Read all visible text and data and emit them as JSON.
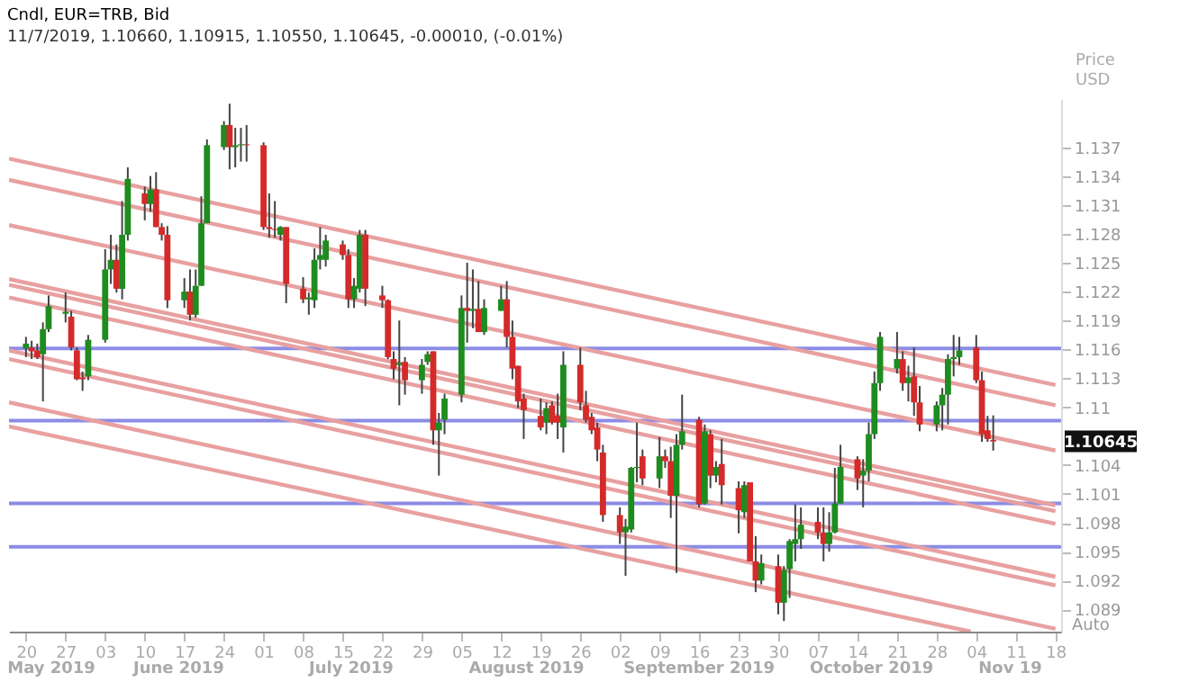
{
  "chart_data": {
    "type": "candlestick",
    "title": "Cndl, EUR=TRB, Bid",
    "subtitle": "11/7/2019, 1.10660, 1.10915, 1.10550, 1.10645, -0.00010, (-0.01%)",
    "ylabel": "Price USD",
    "x": [
      "2019-05-20",
      "2019-05-21",
      "2019-05-22",
      "2019-05-23",
      "2019-05-24",
      "2019-05-27",
      "2019-05-28",
      "2019-05-29",
      "2019-05-30",
      "2019-05-31",
      "2019-06-03",
      "2019-06-04",
      "2019-06-05",
      "2019-06-06",
      "2019-06-07",
      "2019-06-10",
      "2019-06-11",
      "2019-06-12",
      "2019-06-13",
      "2019-06-14",
      "2019-06-17",
      "2019-06-18",
      "2019-06-19",
      "2019-06-20",
      "2019-06-21",
      "2019-06-24",
      "2019-06-25",
      "2019-06-26",
      "2019-06-27",
      "2019-06-28",
      "2019-07-01",
      "2019-07-02",
      "2019-07-03",
      "2019-07-04",
      "2019-07-05",
      "2019-07-08",
      "2019-07-09",
      "2019-07-10",
      "2019-07-11",
      "2019-07-12",
      "2019-07-15",
      "2019-07-16",
      "2019-07-17",
      "2019-07-18",
      "2019-07-19",
      "2019-07-22",
      "2019-07-23",
      "2019-07-24",
      "2019-07-25",
      "2019-07-26",
      "2019-07-29",
      "2019-07-30",
      "2019-07-31",
      "2019-08-01",
      "2019-08-02",
      "2019-08-05",
      "2019-08-06",
      "2019-08-07",
      "2019-08-08",
      "2019-08-09",
      "2019-08-12",
      "2019-08-13",
      "2019-08-14",
      "2019-08-15",
      "2019-08-16",
      "2019-08-19",
      "2019-08-20",
      "2019-08-21",
      "2019-08-22",
      "2019-08-23",
      "2019-08-26",
      "2019-08-27",
      "2019-08-28",
      "2019-08-29",
      "2019-08-30",
      "2019-09-02",
      "2019-09-03",
      "2019-09-04",
      "2019-09-05",
      "2019-09-06",
      "2019-09-09",
      "2019-09-10",
      "2019-09-11",
      "2019-09-12",
      "2019-09-13",
      "2019-09-16",
      "2019-09-17",
      "2019-09-18",
      "2019-09-19",
      "2019-09-20",
      "2019-09-23",
      "2019-09-24",
      "2019-09-25",
      "2019-09-26",
      "2019-09-27",
      "2019-09-30",
      "2019-10-01",
      "2019-10-02",
      "2019-10-03",
      "2019-10-04",
      "2019-10-07",
      "2019-10-08",
      "2019-10-09",
      "2019-10-10",
      "2019-10-11",
      "2019-10-14",
      "2019-10-15",
      "2019-10-16",
      "2019-10-17",
      "2019-10-18",
      "2019-10-21",
      "2019-10-22",
      "2019-10-23",
      "2019-10-24",
      "2019-10-25",
      "2019-10-28",
      "2019-10-29",
      "2019-10-30",
      "2019-10-31",
      "2019-11-01",
      "2019-11-04",
      "2019-11-05",
      "2019-11-06",
      "2019-11-07"
    ],
    "ohlc": [
      [
        1.1161,
        1.1173,
        1.1152,
        1.1166
      ],
      [
        1.1162,
        1.1169,
        1.115,
        1.1158
      ],
      [
        1.1159,
        1.1166,
        1.115,
        1.1152
      ],
      [
        1.1155,
        1.1188,
        1.1106,
        1.1181
      ],
      [
        1.1181,
        1.1216,
        1.1178,
        1.1205
      ],
      [
        1.1197,
        1.1219,
        1.1188,
        1.1199
      ],
      [
        1.1194,
        1.12,
        1.1159,
        1.1162
      ],
      [
        1.1159,
        1.1162,
        1.1128,
        1.1129
      ],
      [
        1.1131,
        1.1137,
        1.1117,
        1.1129
      ],
      [
        1.1132,
        1.1175,
        1.1128,
        1.117
      ],
      [
        1.117,
        1.1264,
        1.1167,
        1.1243
      ],
      [
        1.1243,
        1.1279,
        1.1228,
        1.1253
      ],
      [
        1.1253,
        1.1269,
        1.1219,
        1.1223
      ],
      [
        1.1223,
        1.1314,
        1.1212,
        1.1279
      ],
      [
        1.1279,
        1.1349,
        1.1273,
        1.1337
      ],
      [
        1.1322,
        1.1329,
        1.1294,
        1.1311
      ],
      [
        1.1311,
        1.134,
        1.1303,
        1.1326
      ],
      [
        1.1326,
        1.1344,
        1.1287,
        1.1287
      ],
      [
        1.1287,
        1.1291,
        1.1273,
        1.1279
      ],
      [
        1.1279,
        1.1288,
        1.1203,
        1.1211
      ],
      [
        1.1211,
        1.1234,
        1.1203,
        1.122
      ],
      [
        1.122,
        1.1243,
        1.119,
        1.1196
      ],
      [
        1.1196,
        1.1243,
        1.1193,
        1.1226
      ],
      [
        1.1226,
        1.1319,
        1.1226,
        1.1291
      ],
      [
        1.1291,
        1.1378,
        1.1291,
        1.1372
      ],
      [
        1.137,
        1.1397,
        1.1367,
        1.1393
      ],
      [
        1.1393,
        1.1415,
        1.1347,
        1.137
      ],
      [
        1.137,
        1.139,
        1.1349,
        1.1372
      ],
      [
        1.1372,
        1.139,
        1.1355,
        1.1373
      ],
      [
        1.1373,
        1.1393,
        1.1355,
        1.1372
      ],
      [
        1.1372,
        1.1375,
        1.1284,
        1.1287
      ],
      [
        1.1287,
        1.1322,
        1.1276,
        1.1285
      ],
      [
        1.1285,
        1.1314,
        1.1276,
        1.1284
      ],
      [
        1.1279,
        1.1288,
        1.1273,
        1.1287
      ],
      [
        1.1287,
        1.1287,
        1.1208,
        1.1228
      ],
      [
        1.1223,
        1.1235,
        1.1208,
        1.1212
      ],
      [
        1.1212,
        1.1219,
        1.1196,
        1.1214
      ],
      [
        1.1211,
        1.1265,
        1.1203,
        1.1253
      ],
      [
        1.1253,
        1.1287,
        1.1243,
        1.1258
      ],
      [
        1.1253,
        1.1279,
        1.1246,
        1.1273
      ],
      [
        1.1269,
        1.1273,
        1.1253,
        1.1258
      ],
      [
        1.1258,
        1.1264,
        1.1203,
        1.1212
      ],
      [
        1.1212,
        1.1234,
        1.1203,
        1.1226
      ],
      [
        1.1223,
        1.1284,
        1.1219,
        1.1279
      ],
      [
        1.1279,
        1.1284,
        1.1205,
        1.1223
      ],
      [
        1.1216,
        1.1226,
        1.1203,
        1.1211
      ],
      [
        1.1211,
        1.1212,
        1.115,
        1.1152
      ],
      [
        1.115,
        1.1158,
        1.1129,
        1.114
      ],
      [
        1.1144,
        1.119,
        1.1102,
        1.1146
      ],
      [
        1.1147,
        1.1152,
        1.1113,
        1.1128
      ],
      [
        1.1128,
        1.115,
        1.1114,
        1.1144
      ],
      [
        1.1147,
        1.1158,
        1.1144,
        1.1155
      ],
      [
        1.1158,
        1.1158,
        1.1061,
        1.1076
      ],
      [
        1.1076,
        1.1094,
        1.1029,
        1.1084
      ],
      [
        1.1087,
        1.1114,
        1.1072,
        1.1109
      ],
      [
        1.1113,
        1.1216,
        1.1105,
        1.1203
      ],
      [
        1.1203,
        1.125,
        1.1167,
        1.12
      ],
      [
        1.12,
        1.1243,
        1.1182,
        1.1202
      ],
      [
        1.1202,
        1.1231,
        1.1178,
        1.1178
      ],
      [
        1.1178,
        1.1212,
        1.1175,
        1.1203
      ],
      [
        1.12,
        1.1226,
        1.12,
        1.1212
      ],
      [
        1.1212,
        1.1231,
        1.1162,
        1.1173
      ],
      [
        1.1173,
        1.119,
        1.1129,
        1.114
      ],
      [
        1.1143,
        1.1143,
        1.1099,
        1.1106
      ],
      [
        1.1109,
        1.1114,
        1.1067,
        1.1097
      ],
      [
        1.1091,
        1.1109,
        1.1076,
        1.1079
      ],
      [
        1.1084,
        1.1105,
        1.1072,
        1.1099
      ],
      [
        1.1102,
        1.1106,
        1.1082,
        1.1084
      ],
      [
        1.1091,
        1.1114,
        1.1067,
        1.1084
      ],
      [
        1.1079,
        1.1158,
        1.1053,
        1.1144
      ],
      [
        1.1144,
        1.1162,
        1.1097,
        1.1105
      ],
      [
        1.1102,
        1.1117,
        1.1084,
        1.1087
      ],
      [
        1.109,
        1.1094,
        1.1072,
        1.1076
      ],
      [
        1.1079,
        1.1084,
        1.1044,
        1.1056
      ],
      [
        1.1053,
        1.1061,
        1.0981,
        1.0988
      ],
      [
        1.0988,
        1.0996,
        1.0958,
        1.097
      ],
      [
        1.097,
        1.0984,
        1.0925,
        1.0976
      ],
      [
        1.0973,
        1.1038,
        1.097,
        1.1037
      ],
      [
        1.1037,
        1.1084,
        1.1022,
        1.1038
      ],
      [
        1.1049,
        1.1056,
        1.1019,
        1.1026
      ],
      [
        1.1026,
        1.1069,
        1.1016,
        1.1049
      ],
      [
        1.1049,
        1.1056,
        1.1037,
        1.1044
      ],
      [
        1.1044,
        1.1059,
        1.0985,
        1.1008
      ],
      [
        1.1008,
        1.1072,
        1.0928,
        1.1061
      ],
      [
        1.1061,
        1.1113,
        1.1056,
        1.1075
      ],
      [
        1.1087,
        1.109,
        1.0996,
        1.0999
      ],
      [
        1.1,
        1.1082,
        1.0999,
        1.1075
      ],
      [
        1.1072,
        1.1076,
        1.1016,
        1.1029
      ],
      [
        1.1029,
        1.1044,
        1.1022,
        1.1038
      ],
      [
        1.1041,
        1.1067,
        1.0999,
        1.1019
      ],
      [
        1.1016,
        1.1023,
        1.0969,
        1.0993
      ],
      [
        1.0991,
        1.1023,
        1.0985,
        1.1019
      ],
      [
        1.1022,
        1.1022,
        1.094,
        1.094
      ],
      [
        1.094,
        1.0966,
        1.0908,
        1.092
      ],
      [
        1.092,
        1.0947,
        1.0916,
        1.0938
      ],
      [
        1.0935,
        1.0947,
        1.0885,
        1.0897
      ],
      [
        1.0897,
        1.0935,
        1.0878,
        1.0931
      ],
      [
        1.0932,
        1.0963,
        1.0902,
        1.0961
      ],
      [
        1.0958,
        1.0999,
        1.094,
        1.0963
      ],
      [
        1.0963,
        1.0996,
        1.0953,
        1.0978
      ],
      [
        1.0981,
        1.0996,
        1.0963,
        1.097
      ],
      [
        1.097,
        1.0996,
        1.094,
        1.0958
      ],
      [
        1.0958,
        1.0991,
        1.095,
        1.097
      ],
      [
        1.097,
        1.1037,
        1.0969,
        1.1
      ],
      [
        1.1,
        1.1061,
        1.1,
        1.1038
      ],
      [
        1.1046,
        1.1049,
        1.1014,
        1.1026
      ],
      [
        1.1029,
        1.1046,
        1.0996,
        1.1034
      ],
      [
        1.1034,
        1.1084,
        1.1023,
        1.1072
      ],
      [
        1.1072,
        1.1137,
        1.1067,
        1.1125
      ],
      [
        1.1125,
        1.1178,
        1.1117,
        1.1173
      ],
      [
        1.114,
        1.1178,
        1.1135,
        1.115
      ],
      [
        1.115,
        1.1158,
        1.1117,
        1.1125
      ],
      [
        1.1125,
        1.1143,
        1.1106,
        1.1131
      ],
      [
        1.1132,
        1.1162,
        1.1091,
        1.1105
      ],
      [
        1.1105,
        1.1122,
        1.1075,
        1.1082
      ],
      [
        1.1082,
        1.1106,
        1.1075,
        1.1102
      ],
      [
        1.1102,
        1.112,
        1.1076,
        1.1113
      ],
      [
        1.1113,
        1.1155,
        1.1082,
        1.115
      ],
      [
        1.115,
        1.1175,
        1.1132,
        1.1152
      ],
      [
        1.1152,
        1.1173,
        1.1144,
        1.1159
      ],
      [
        1.1162,
        1.1175,
        1.1125,
        1.1128
      ],
      [
        1.1128,
        1.1137,
        1.1064,
        1.1072
      ],
      [
        1.1076,
        1.1091,
        1.1064,
        1.1067
      ],
      [
        1.1066,
        1.10915,
        1.1055,
        1.10645
      ]
    ],
    "series": [
      {
        "type": "line",
        "color": "#e8a0a0",
        "x": [
          "2019-05-17",
          "2019-11-18"
        ],
        "values": [
          1.1358,
          1.1123
        ]
      },
      {
        "type": "line",
        "color": "#e8a0a0",
        "x": [
          "2019-05-17",
          "2019-11-18"
        ],
        "values": [
          1.1336,
          1.1102
        ]
      },
      {
        "type": "line",
        "color": "#e8a0a0",
        "x": [
          "2019-05-17",
          "2019-11-18"
        ],
        "values": [
          1.1289,
          1.1055
        ]
      },
      {
        "type": "line",
        "color": "#e8a0a0",
        "x": [
          "2019-05-17",
          "2019-11-18"
        ],
        "values": [
          1.1233,
          1.0998
        ]
      },
      {
        "type": "line",
        "color": "#e8a0a0",
        "x": [
          "2019-05-17",
          "2019-11-18"
        ],
        "values": [
          1.1227,
          1.0992
        ]
      },
      {
        "type": "line",
        "color": "#e8a0a0",
        "x": [
          "2019-05-17",
          "2019-11-18"
        ],
        "values": [
          1.1214,
          1.0979
        ]
      },
      {
        "type": "line",
        "color": "#e8a0a0",
        "x": [
          "2019-05-17",
          "2019-11-18"
        ],
        "values": [
          1.1159,
          1.0924
        ]
      },
      {
        "type": "line",
        "color": "#e8a0a0",
        "x": [
          "2019-05-17",
          "2019-11-18"
        ],
        "values": [
          1.115,
          1.0915
        ]
      },
      {
        "type": "line",
        "color": "#e8a0a0",
        "x": [
          "2019-05-17",
          "2019-11-18"
        ],
        "values": [
          1.1105,
          1.087
        ]
      },
      {
        "type": "line",
        "color": "#e8a0a0",
        "x": [
          "2019-05-17",
          "2019-11-03"
        ],
        "values": [
          1.108,
          1.0867
        ]
      }
    ],
    "ref_lines": [
      {
        "axis": "y",
        "value": 1.1161,
        "color": "#8c8ce6"
      },
      {
        "axis": "y",
        "value": 1.1086,
        "color": "#8c8ce6"
      },
      {
        "axis": "y",
        "value": 1.1,
        "color": "#8c8ce6"
      },
      {
        "axis": "y",
        "value": 1.0955,
        "color": "#8c8ce6"
      }
    ],
    "xlim": [
      "2019-05-17",
      "2019-11-19"
    ],
    "xticks": [
      {
        "value": "2019-05-20",
        "label": "20"
      },
      {
        "value": "2019-05-27",
        "label": "27"
      },
      {
        "value": "2019-06-03",
        "label": "03"
      },
      {
        "value": "2019-06-10",
        "label": "10"
      },
      {
        "value": "2019-06-17",
        "label": "17"
      },
      {
        "value": "2019-06-24",
        "label": "24"
      },
      {
        "value": "2019-07-01",
        "label": "01"
      },
      {
        "value": "2019-07-08",
        "label": "08"
      },
      {
        "value": "2019-07-15",
        "label": "15"
      },
      {
        "value": "2019-07-22",
        "label": "22"
      },
      {
        "value": "2019-07-29",
        "label": "29"
      },
      {
        "value": "2019-08-05",
        "label": "05"
      },
      {
        "value": "2019-08-12",
        "label": "12"
      },
      {
        "value": "2019-08-19",
        "label": "19"
      },
      {
        "value": "2019-08-26",
        "label": "26"
      },
      {
        "value": "2019-09-02",
        "label": "02"
      },
      {
        "value": "2019-09-09",
        "label": "09"
      },
      {
        "value": "2019-09-16",
        "label": "16"
      },
      {
        "value": "2019-09-23",
        "label": "23"
      },
      {
        "value": "2019-09-30",
        "label": "30"
      },
      {
        "value": "2019-10-07",
        "label": "07"
      },
      {
        "value": "2019-10-14",
        "label": "14"
      },
      {
        "value": "2019-10-21",
        "label": "21"
      },
      {
        "value": "2019-10-28",
        "label": "28"
      },
      {
        "value": "2019-11-04",
        "label": "04"
      },
      {
        "value": "2019-11-11",
        "label": "11"
      },
      {
        "value": "2019-11-18",
        "label": "18"
      }
    ],
    "ylim": [
      1.0867,
      1.142
    ],
    "yticks": [
      1.137,
      1.134,
      1.131,
      1.128,
      1.125,
      1.122,
      1.119,
      1.116,
      1.113,
      1.11,
      1.104,
      1.101,
      1.098,
      1.095,
      1.092,
      1.089
    ],
    "annotations": [
      {
        "text": "1.10645",
        "y": 1.10645
      },
      "May 2019",
      "June 2019",
      "July 2019",
      "August 2019",
      "September 2019",
      "October 2019",
      "Nov 19",
      "Auto"
    ],
    "grid": false
  }
}
